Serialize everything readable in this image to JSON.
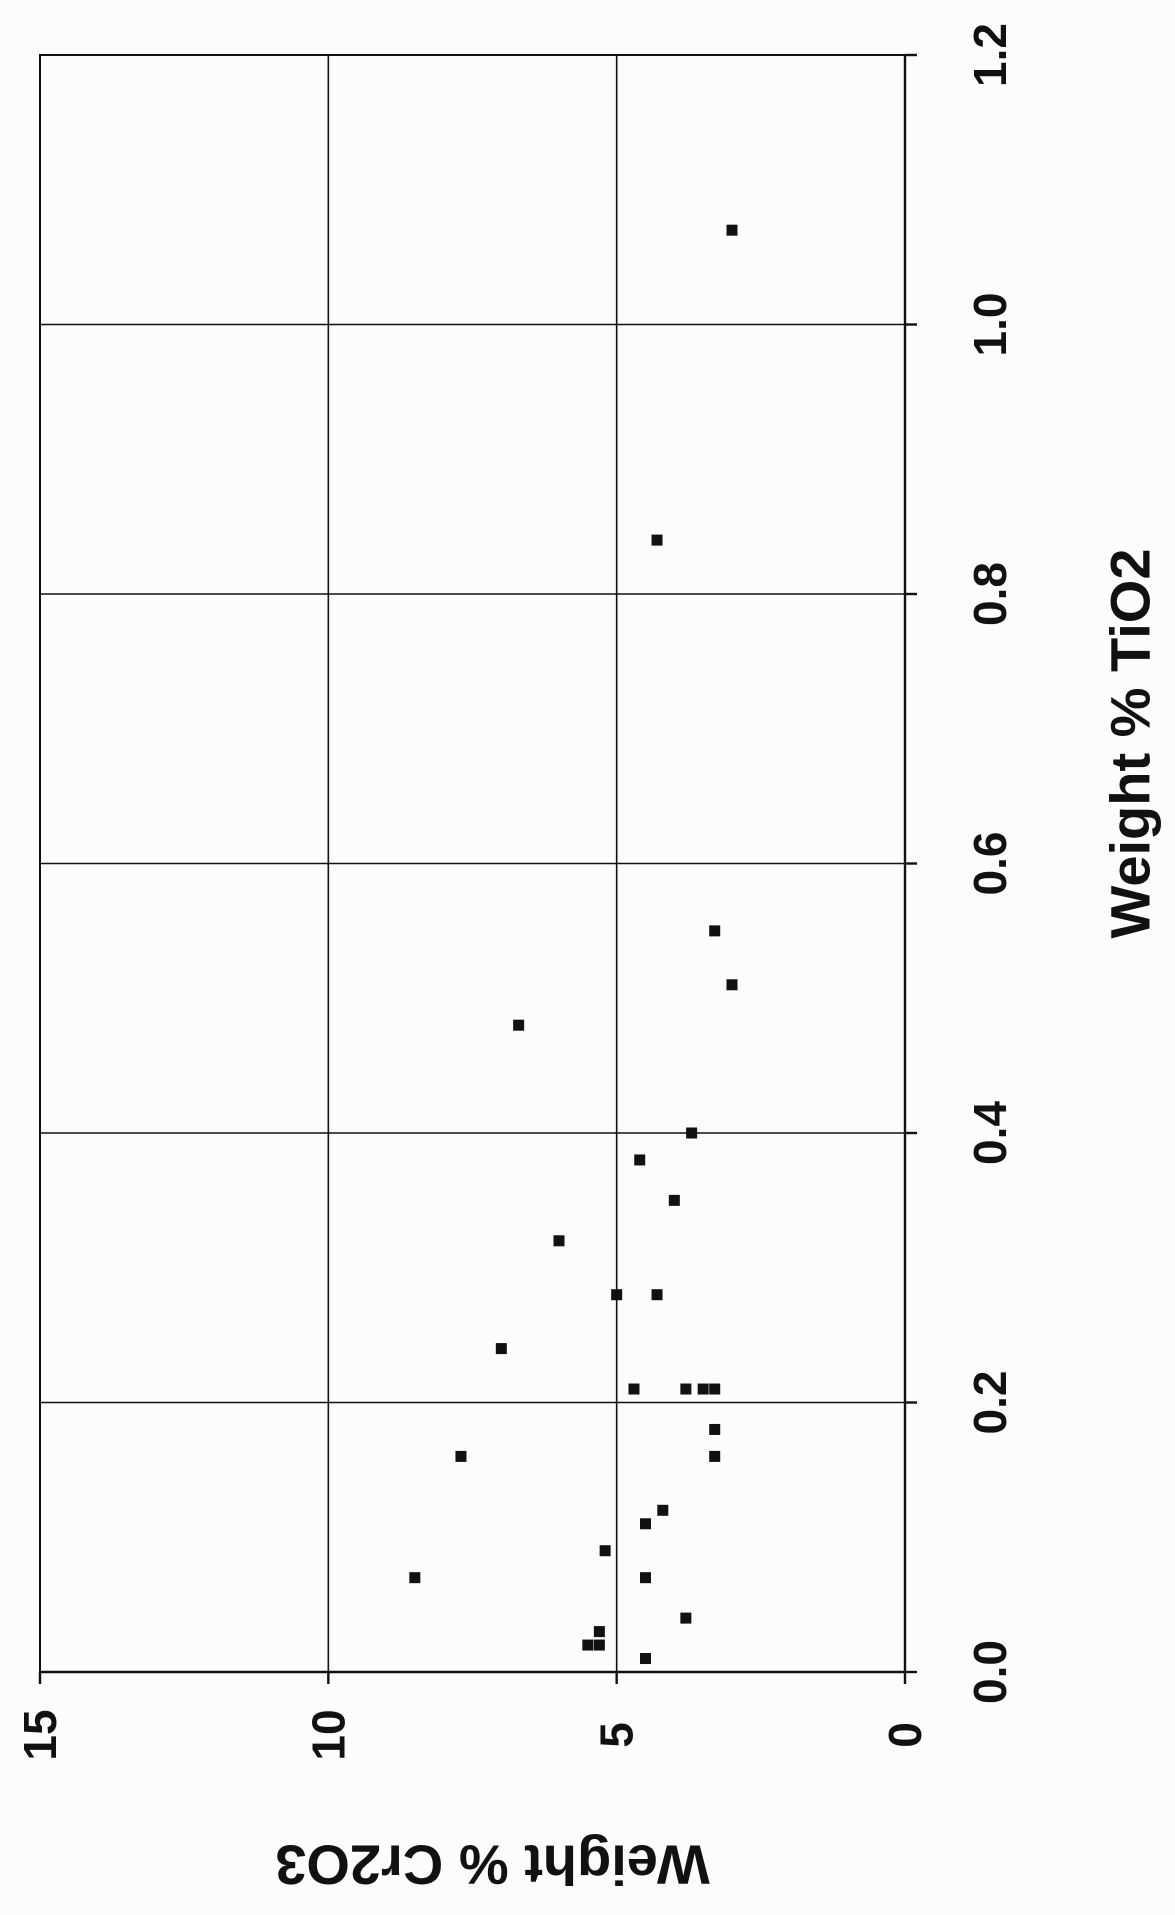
{
  "chart_data": {
    "type": "scatter",
    "title": "",
    "xlabel": "Weight % TiO2",
    "ylabel": "Weight % Cr2O3",
    "xlim": [
      0.0,
      1.2
    ],
    "ylim": [
      0,
      15
    ],
    "x_ticks": [
      "0.0",
      "0.2",
      "0.4",
      "0.6",
      "0.8",
      "1.0",
      "1.2"
    ],
    "y_ticks": [
      "0",
      "5",
      "10",
      "15"
    ],
    "grid": true,
    "legend": "none",
    "orientation": "rotated 90 degrees clockwise on page",
    "marker": "square",
    "color": "#111111",
    "series": [
      {
        "points": [
          {
            "x": 0.01,
            "y": 4.5
          },
          {
            "x": 0.02,
            "y": 5.5
          },
          {
            "x": 0.02,
            "y": 5.3
          },
          {
            "x": 0.03,
            "y": 5.3
          },
          {
            "x": 0.04,
            "y": 3.8
          },
          {
            "x": 0.07,
            "y": 8.5
          },
          {
            "x": 0.07,
            "y": 4.5
          },
          {
            "x": 0.09,
            "y": 5.2
          },
          {
            "x": 0.11,
            "y": 4.5
          },
          {
            "x": 0.12,
            "y": 4.2
          },
          {
            "x": 0.16,
            "y": 7.7
          },
          {
            "x": 0.16,
            "y": 3.3
          },
          {
            "x": 0.18,
            "y": 3.3
          },
          {
            "x": 0.21,
            "y": 3.8
          },
          {
            "x": 0.21,
            "y": 4.7
          },
          {
            "x": 0.21,
            "y": 3.5
          },
          {
            "x": 0.21,
            "y": 3.3
          },
          {
            "x": 0.24,
            "y": 7.0
          },
          {
            "x": 0.28,
            "y": 5.0
          },
          {
            "x": 0.28,
            "y": 4.3
          },
          {
            "x": 0.32,
            "y": 6.0
          },
          {
            "x": 0.35,
            "y": 4.0
          },
          {
            "x": 0.38,
            "y": 4.6
          },
          {
            "x": 0.4,
            "y": 3.7
          },
          {
            "x": 0.48,
            "y": 6.7
          },
          {
            "x": 0.51,
            "y": 3.0
          },
          {
            "x": 0.55,
            "y": 3.3
          },
          {
            "x": 0.84,
            "y": 4.3
          },
          {
            "x": 1.07,
            "y": 3.0
          }
        ]
      }
    ]
  }
}
